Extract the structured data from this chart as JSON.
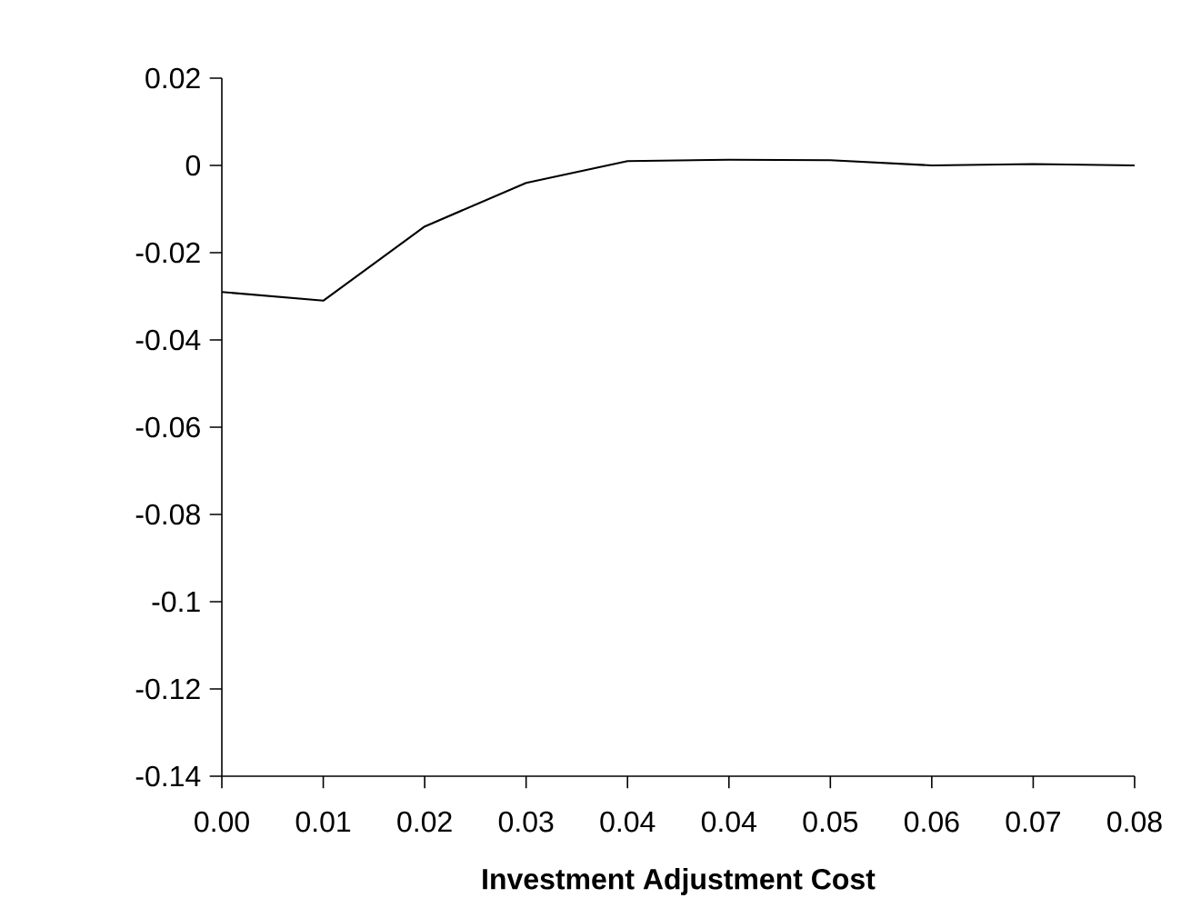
{
  "chart_data": {
    "type": "line",
    "xlabel": "Investment Adjustment Cost",
    "categories": [
      "0.00",
      "0.01",
      "0.02",
      "0.03",
      "0.04",
      "0.04",
      "0.05",
      "0.06",
      "0.07",
      "0.08"
    ],
    "series": [
      {
        "color": "#000000",
        "values": [
          -0.029,
          -0.031,
          -0.014,
          -0.004,
          0.001,
          0.0013,
          0.0012,
          0.0,
          0.0003,
          0.0
        ]
      }
    ],
    "ylim": [
      -0.14,
      0.02
    ],
    "yticks": [
      -0.14,
      -0.12,
      -0.1,
      -0.08,
      -0.06,
      -0.04,
      -0.02,
      0,
      0.02
    ]
  }
}
